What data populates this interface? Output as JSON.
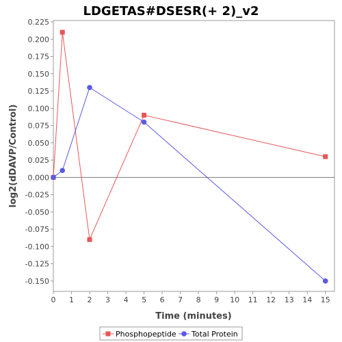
{
  "chart_data": {
    "type": "line",
    "title": "LDGETAS#DSESR(+ 2)_v2",
    "xlabel": "Time (minutes)",
    "ylabel": "log2(dDAVP/Control)",
    "xlim": [
      0,
      15.5
    ],
    "ylim": [
      -0.165,
      0.227
    ],
    "x_ticks": [
      0,
      1,
      2,
      3,
      4,
      5,
      6,
      7,
      8,
      9,
      10,
      11,
      12,
      13,
      14,
      15
    ],
    "y_ticks": [
      -0.15,
      -0.125,
      -0.1,
      -0.075,
      -0.05,
      -0.025,
      0.0,
      0.025,
      0.05,
      0.075,
      0.1,
      0.125,
      0.15,
      0.175,
      0.2,
      0.225
    ],
    "y_tick_labels": [
      "-0.150",
      "-0.125",
      "-0.100",
      "-0.075",
      "-0.050",
      "-0.025",
      "0.000",
      "0.025",
      "0.050",
      "0.075",
      "0.100",
      "0.125",
      "0.150",
      "0.175",
      "0.200",
      "0.225"
    ],
    "zero_line": true,
    "grid": false,
    "legend_position": "bottom-center",
    "series": [
      {
        "name": "Phosphopeptide",
        "color": "#e85656",
        "marker": "square",
        "points": [
          {
            "x": 0,
            "y": 0.0
          },
          {
            "x": 0.5,
            "y": 0.21
          },
          {
            "x": 2,
            "y": -0.09
          },
          {
            "x": 5,
            "y": 0.09
          },
          {
            "x": 15,
            "y": 0.03
          }
        ]
      },
      {
        "name": "Total Protein",
        "color": "#5a5ae6",
        "marker": "circle",
        "points": [
          {
            "x": 0,
            "y": 0.0
          },
          {
            "x": 0.5,
            "y": 0.01
          },
          {
            "x": 2,
            "y": 0.13
          },
          {
            "x": 5,
            "y": 0.08
          },
          {
            "x": 15,
            "y": -0.15
          }
        ]
      }
    ]
  }
}
